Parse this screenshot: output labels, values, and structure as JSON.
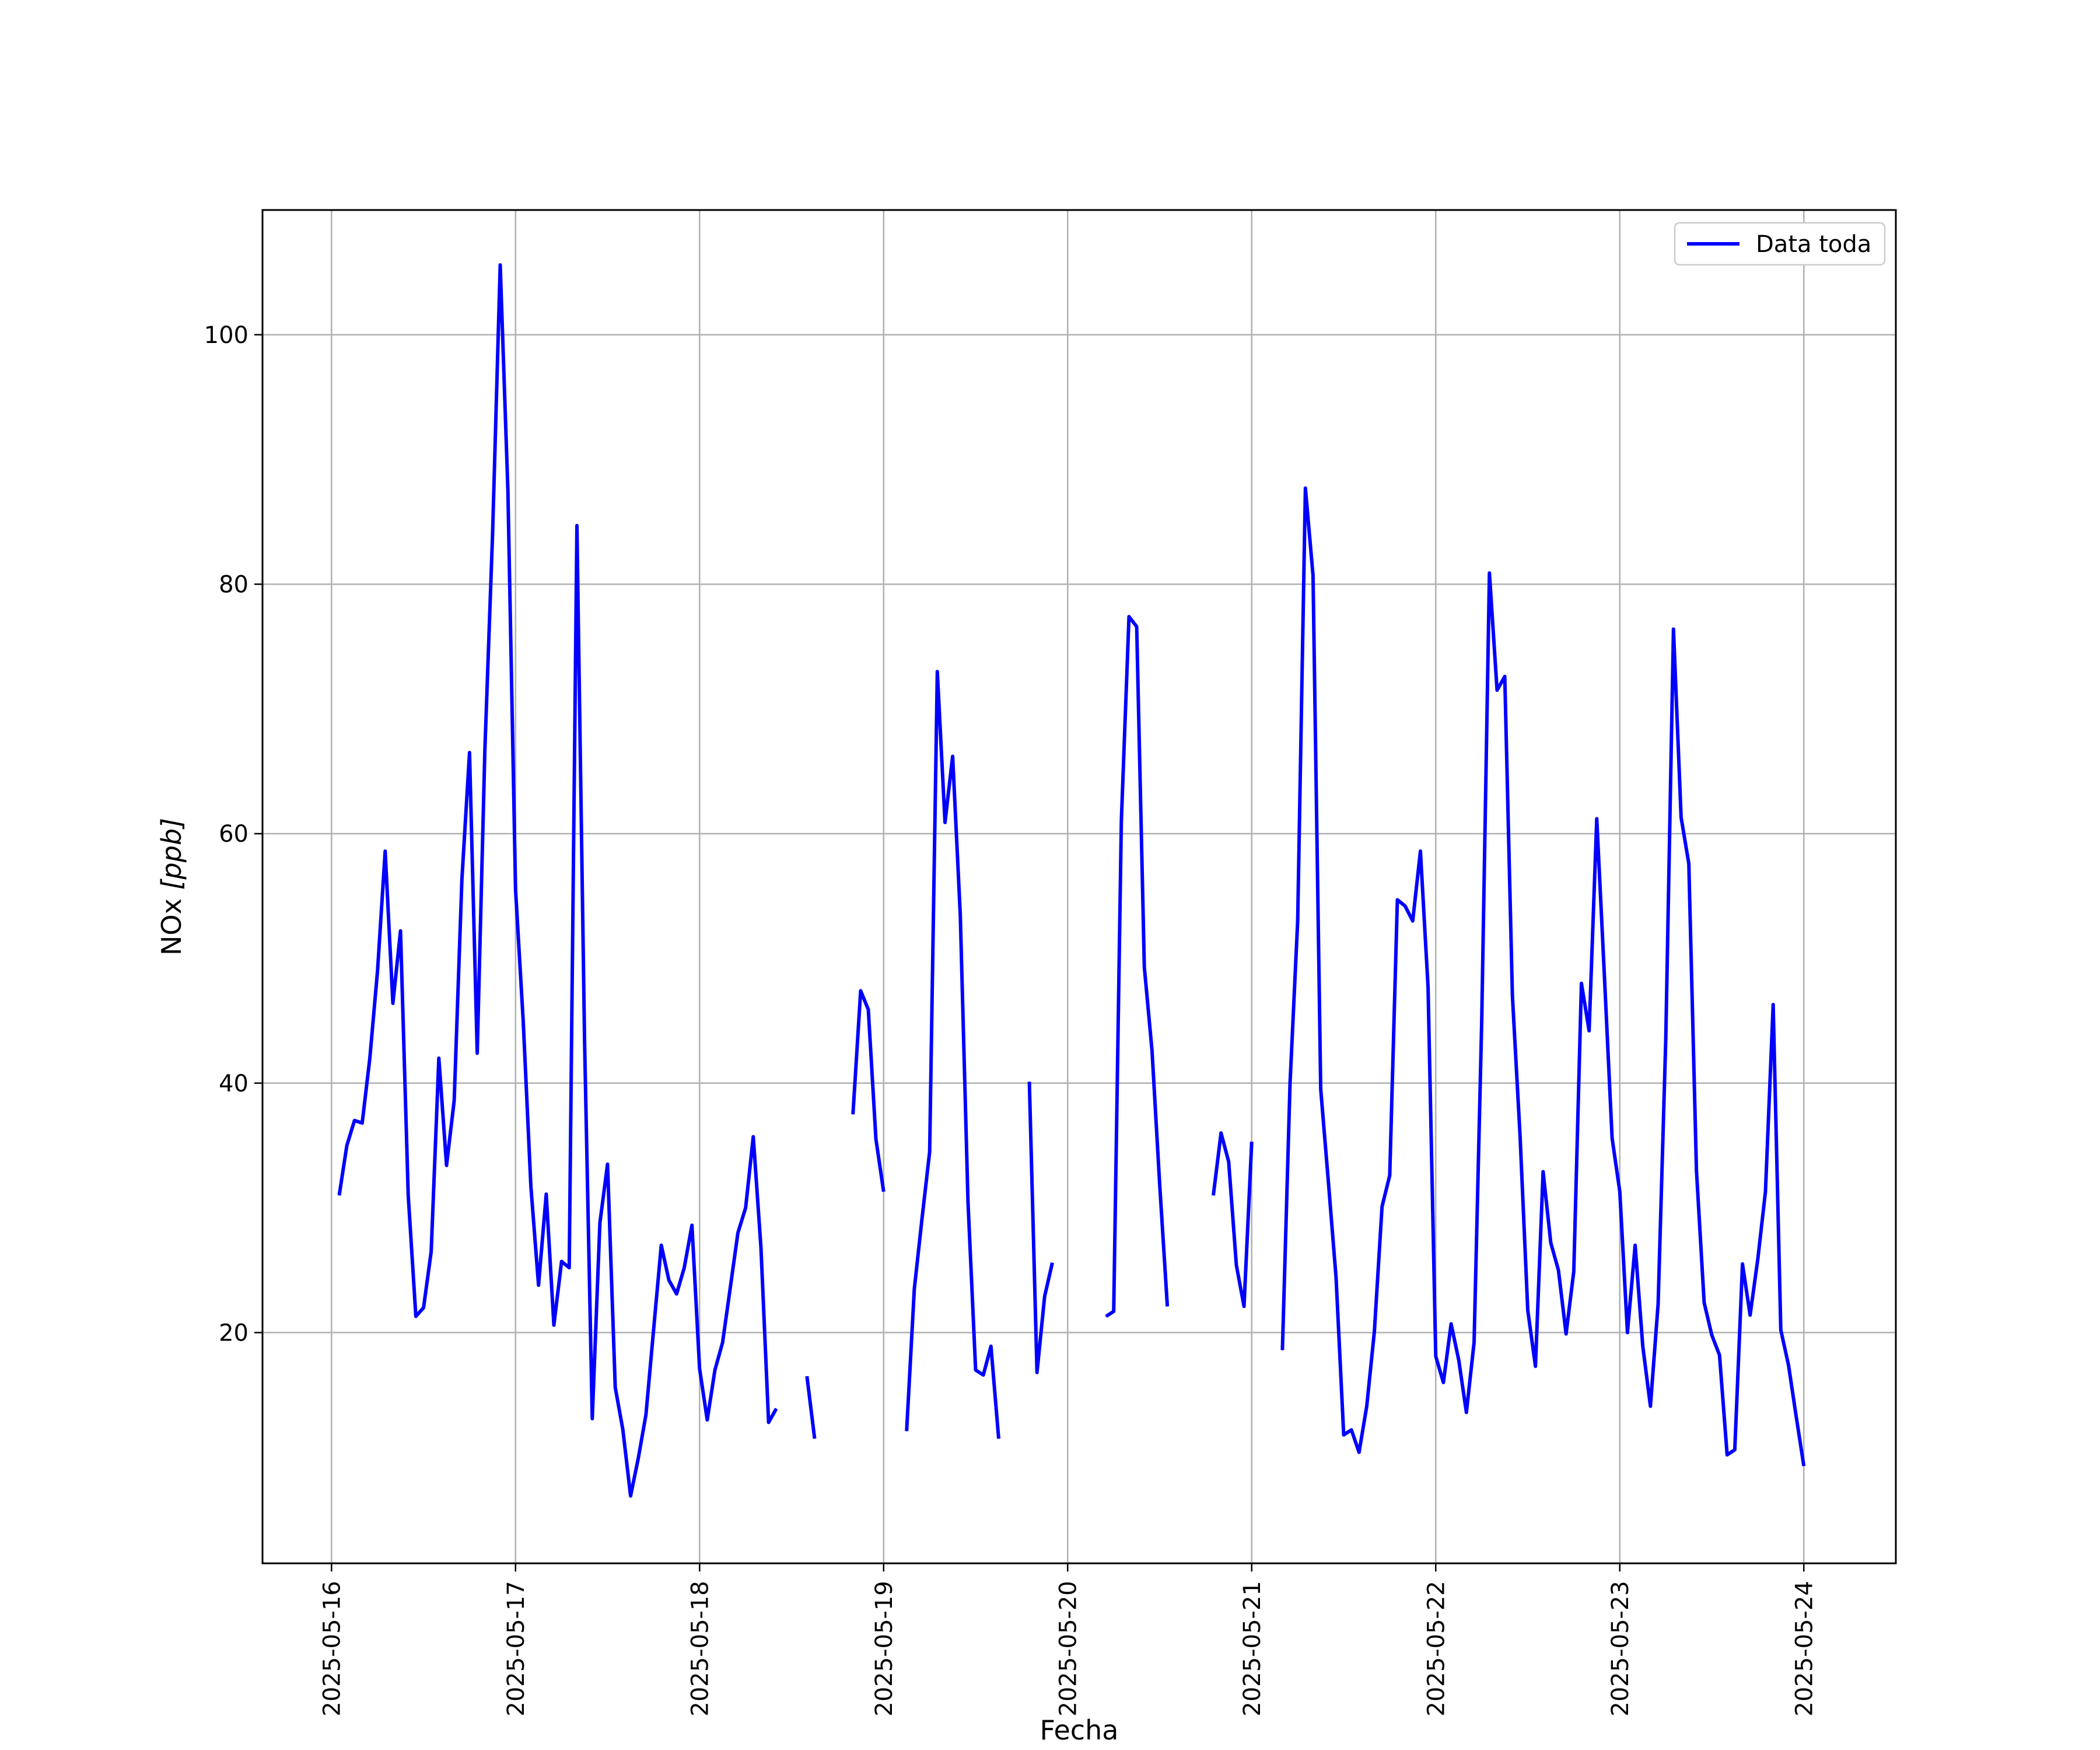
{
  "chart_data": {
    "type": "line",
    "title": "",
    "xlabel": "Fecha",
    "ylabel_base": "NOx ",
    "ylabel_unit": "[ppb]",
    "ylim": [
      1.5,
      110
    ],
    "xlim": [
      "2025-05-15 15:00",
      "2025-05-24 12:00"
    ],
    "grid": true,
    "legend_position": "top-right",
    "x_ticks": [
      "2025-05-16",
      "2025-05-17",
      "2025-05-18",
      "2025-05-19",
      "2025-05-20",
      "2025-05-21",
      "2025-05-22",
      "2025-05-23",
      "2025-05-24"
    ],
    "y_ticks": [
      20,
      40,
      60,
      80,
      100
    ],
    "colors": {
      "series": "#0000ff",
      "grid": "#b0b0b0",
      "axes": "#000000"
    },
    "series": [
      {
        "name": "Data toda",
        "segments": [
          [
            [
              "2025-05-16 01:00",
              31
            ],
            [
              "2025-05-16 02:00",
              35
            ],
            [
              "2025-05-16 03:00",
              37
            ],
            [
              "2025-05-16 04:00",
              36.8
            ],
            [
              "2025-05-16 05:00",
              42
            ],
            [
              "2025-05-16 06:00",
              49
            ],
            [
              "2025-05-16 07:00",
              58.6
            ],
            [
              "2025-05-16 08:00",
              46.4
            ],
            [
              "2025-05-16 09:00",
              52.2
            ],
            [
              "2025-05-16 10:00",
              31
            ],
            [
              "2025-05-16 11:00",
              21.3
            ],
            [
              "2025-05-16 12:00",
              22
            ],
            [
              "2025-05-16 13:00",
              26.5
            ],
            [
              "2025-05-16 14:00",
              42
            ],
            [
              "2025-05-16 15:00",
              33.4
            ],
            [
              "2025-05-16 16:00",
              38.6
            ],
            [
              "2025-05-16 17:00",
              56.3
            ],
            [
              "2025-05-16 18:00",
              66.5
            ],
            [
              "2025-05-16 19:00",
              42.4
            ],
            [
              "2025-05-16 20:00",
              66.7
            ],
            [
              "2025-05-16 21:00",
              84
            ],
            [
              "2025-05-16 22:00",
              105.6
            ],
            [
              "2025-05-16 23:00",
              87.5
            ],
            [
              "2025-05-17 00:00",
              55.5
            ],
            [
              "2025-05-17 01:00",
              45
            ],
            [
              "2025-05-17 02:00",
              31.7
            ],
            [
              "2025-05-17 03:00",
              23.8
            ],
            [
              "2025-05-17 04:00",
              31.1
            ],
            [
              "2025-05-17 05:00",
              20.6
            ],
            [
              "2025-05-17 06:00",
              25.7
            ],
            [
              "2025-05-17 07:00",
              25.2
            ],
            [
              "2025-05-17 08:00",
              84.7
            ],
            [
              "2025-05-17 09:00",
              43.4
            ],
            [
              "2025-05-17 10:00",
              13.1
            ],
            [
              "2025-05-17 11:00",
              28.8
            ],
            [
              "2025-05-17 12:00",
              33.5
            ],
            [
              "2025-05-17 13:00",
              15.6
            ],
            [
              "2025-05-17 14:00",
              12.2
            ],
            [
              "2025-05-17 15:00",
              6.9
            ],
            [
              "2025-05-17 16:00",
              9.9
            ],
            [
              "2025-05-17 17:00",
              13.4
            ],
            [
              "2025-05-17 18:00",
              20.2
            ],
            [
              "2025-05-17 19:00",
              27
            ],
            [
              "2025-05-17 20:00",
              24.2
            ],
            [
              "2025-05-17 21:00",
              23.1
            ],
            [
              "2025-05-17 22:00",
              25.2
            ],
            [
              "2025-05-17 23:00",
              28.6
            ],
            [
              "2025-05-18 00:00",
              17.1
            ],
            [
              "2025-05-18 01:00",
              13
            ],
            [
              "2025-05-18 02:00",
              17
            ],
            [
              "2025-05-18 03:00",
              19.2
            ],
            [
              "2025-05-18 04:00",
              23.6
            ],
            [
              "2025-05-18 05:00",
              28
            ],
            [
              "2025-05-18 06:00",
              30
            ],
            [
              "2025-05-18 07:00",
              35.7
            ],
            [
              "2025-05-18 08:00",
              26.8
            ],
            [
              "2025-05-18 09:00",
              12.8
            ],
            [
              "2025-05-18 10:00",
              13.9
            ]
          ],
          [
            [
              "2025-05-18 14:00",
              16.5
            ],
            [
              "2025-05-18 15:00",
              11.5
            ]
          ],
          [
            [
              "2025-05-18 20:00",
              37.5
            ],
            [
              "2025-05-18 21:00",
              47.4
            ],
            [
              "2025-05-18 22:00",
              45.9
            ],
            [
              "2025-05-18 23:00",
              35.5
            ],
            [
              "2025-05-19 00:00",
              31.3
            ]
          ],
          [
            [
              "2025-05-19 03:00",
              12.1
            ],
            [
              "2025-05-19 04:00",
              23.5
            ],
            [
              "2025-05-19 05:00",
              29.1
            ],
            [
              "2025-05-19 06:00",
              34.5
            ],
            [
              "2025-05-19 07:00",
              73
            ],
            [
              "2025-05-19 08:00",
              60.9
            ],
            [
              "2025-05-19 09:00",
              66.2
            ],
            [
              "2025-05-19 10:00",
              53.5
            ],
            [
              "2025-05-19 11:00",
              30.5
            ],
            [
              "2025-05-19 12:00",
              17
            ],
            [
              "2025-05-19 13:00",
              16.6
            ],
            [
              "2025-05-19 14:00",
              18.9
            ],
            [
              "2025-05-19 15:00",
              11.5
            ]
          ],
          [
            [
              "2025-05-19 19:00",
              40.1
            ],
            [
              "2025-05-19 20:00",
              16.8
            ],
            [
              "2025-05-19 21:00",
              22.9
            ],
            [
              "2025-05-19 22:00",
              25.6
            ]
          ],
          [
            [
              "2025-05-20 05:00",
              21.3
            ],
            [
              "2025-05-20 06:00",
              21.7
            ],
            [
              "2025-05-20 07:00",
              61
            ],
            [
              "2025-05-20 08:00",
              77.4
            ],
            [
              "2025-05-20 09:00",
              76.6
            ],
            [
              "2025-05-20 10:00",
              49.3
            ],
            [
              "2025-05-20 11:00",
              42.6
            ],
            [
              "2025-05-20 12:00",
              31.9
            ],
            [
              "2025-05-20 13:00",
              22.1
            ]
          ],
          [
            [
              "2025-05-20 19:00",
              31
            ],
            [
              "2025-05-20 20:00",
              36
            ],
            [
              "2025-05-20 21:00",
              33.7
            ],
            [
              "2025-05-20 22:00",
              25.4
            ],
            [
              "2025-05-20 23:00",
              22.1
            ],
            [
              "2025-05-21 00:00",
              35.3
            ]
          ],
          [
            [
              "2025-05-21 04:00",
              18.6
            ],
            [
              "2025-05-21 05:00",
              40
            ],
            [
              "2025-05-21 06:00",
              53
            ],
            [
              "2025-05-21 07:00",
              87.7
            ],
            [
              "2025-05-21 08:00",
              80.7
            ],
            [
              "2025-05-21 09:00",
              39.5
            ],
            [
              "2025-05-21 10:00",
              32.1
            ],
            [
              "2025-05-21 11:00",
              24.4
            ],
            [
              "2025-05-21 12:00",
              11.8
            ],
            [
              "2025-05-21 13:00",
              12.2
            ],
            [
              "2025-05-21 14:00",
              10.4
            ],
            [
              "2025-05-21 15:00",
              14.1
            ],
            [
              "2025-05-21 16:00",
              20.1
            ],
            [
              "2025-05-21 17:00",
              30.1
            ],
            [
              "2025-05-21 18:00",
              32.6
            ],
            [
              "2025-05-21 19:00",
              54.7
            ],
            [
              "2025-05-21 20:00",
              54.2
            ],
            [
              "2025-05-21 21:00",
              53
            ],
            [
              "2025-05-21 22:00",
              58.6
            ],
            [
              "2025-05-21 23:00",
              47.7
            ],
            [
              "2025-05-22 00:00",
              18.1
            ],
            [
              "2025-05-22 01:00",
              16
            ],
            [
              "2025-05-22 02:00",
              20.7
            ],
            [
              "2025-05-22 03:00",
              17.8
            ],
            [
              "2025-05-22 04:00",
              13.6
            ],
            [
              "2025-05-22 05:00",
              19.2
            ],
            [
              "2025-05-22 06:00",
              45
            ],
            [
              "2025-05-22 07:00",
              80.9
            ],
            [
              "2025-05-22 08:00",
              71.5
            ],
            [
              "2025-05-22 09:00",
              72.6
            ],
            [
              "2025-05-22 10:00",
              47
            ],
            [
              "2025-05-22 11:00",
              35.7
            ],
            [
              "2025-05-22 12:00",
              21.8
            ],
            [
              "2025-05-22 13:00",
              17.3
            ],
            [
              "2025-05-22 14:00",
              32.9
            ],
            [
              "2025-05-22 15:00",
              27.2
            ],
            [
              "2025-05-22 16:00",
              25
            ],
            [
              "2025-05-22 17:00",
              19.9
            ],
            [
              "2025-05-22 18:00",
              24.9
            ],
            [
              "2025-05-22 19:00",
              48
            ],
            [
              "2025-05-22 20:00",
              44.2
            ],
            [
              "2025-05-22 21:00",
              61.2
            ],
            [
              "2025-05-22 22:00",
              48.5
            ],
            [
              "2025-05-22 23:00",
              35.6
            ],
            [
              "2025-05-23 00:00",
              31.3
            ],
            [
              "2025-05-23 01:00",
              20
            ],
            [
              "2025-05-23 02:00",
              27
            ],
            [
              "2025-05-23 03:00",
              18.9
            ],
            [
              "2025-05-23 04:00",
              14.1
            ],
            [
              "2025-05-23 05:00",
              22.3
            ],
            [
              "2025-05-23 06:00",
              43.5
            ],
            [
              "2025-05-23 07:00",
              76.4
            ],
            [
              "2025-05-23 08:00",
              61.3
            ],
            [
              "2025-05-23 09:00",
              57.6
            ],
            [
              "2025-05-23 10:00",
              33
            ],
            [
              "2025-05-23 11:00",
              22.4
            ],
            [
              "2025-05-23 12:00",
              19.8
            ],
            [
              "2025-05-23 13:00",
              18.2
            ],
            [
              "2025-05-23 14:00",
              10.2
            ],
            [
              "2025-05-23 15:00",
              10.6
            ],
            [
              "2025-05-23 16:00",
              25.5
            ],
            [
              "2025-05-23 17:00",
              21.4
            ],
            [
              "2025-05-23 18:00",
              25.9
            ],
            [
              "2025-05-23 19:00",
              31.3
            ],
            [
              "2025-05-23 20:00",
              46.3
            ],
            [
              "2025-05-23 21:00",
              20.2
            ],
            [
              "2025-05-23 22:00",
              17.4
            ],
            [
              "2025-05-23 23:00",
              13.3
            ],
            [
              "2025-05-24 00:00",
              9.3
            ]
          ]
        ]
      }
    ]
  }
}
